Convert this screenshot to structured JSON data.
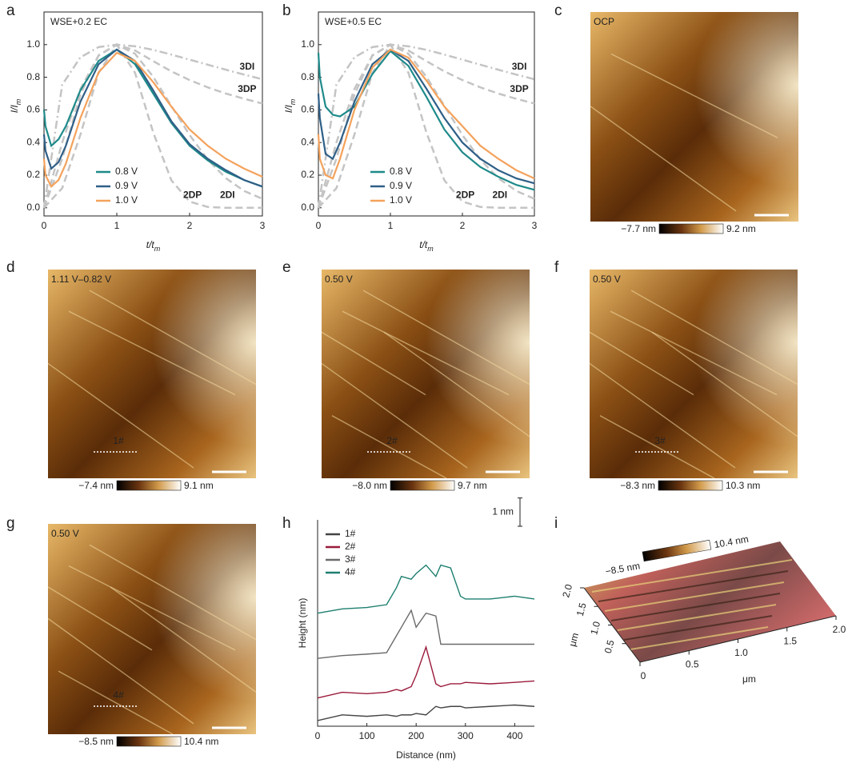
{
  "chart_data": [
    {
      "panel": "a",
      "type": "line",
      "annotation": "WSE+0.2 EC",
      "x_label": {
        "main": "t/t",
        "sub": "m"
      },
      "y_label": {
        "main": "I/I",
        "sub": "m"
      },
      "x": [
        0,
        0.02,
        0.1,
        0.2,
        0.3,
        0.5,
        0.75,
        1,
        1.25,
        1.5,
        1.75,
        2,
        2.25,
        2.5,
        2.75,
        3
      ],
      "series": [
        {
          "name": "0.8 V",
          "color": "#1f8a8a",
          "values": [
            0.6,
            0.5,
            0.38,
            0.42,
            0.5,
            0.72,
            0.9,
            0.97,
            0.88,
            0.7,
            0.52,
            0.38,
            0.29,
            0.22,
            0.17,
            0.13
          ]
        },
        {
          "name": "0.9 V",
          "color": "#2f5f87",
          "values": [
            0.45,
            0.35,
            0.24,
            0.28,
            0.38,
            0.65,
            0.88,
            0.97,
            0.9,
            0.72,
            0.53,
            0.39,
            0.3,
            0.23,
            0.17,
            0.13
          ]
        },
        {
          "name": "1.0 V",
          "color": "#f4a25c",
          "values": [
            0.3,
            0.2,
            0.13,
            0.17,
            0.27,
            0.55,
            0.83,
            0.95,
            0.9,
            0.77,
            0.62,
            0.48,
            0.38,
            0.3,
            0.24,
            0.19
          ]
        }
      ],
      "reference_curves": {
        "color": "#c4c4c4",
        "x": [
          0,
          0.25,
          0.5,
          0.75,
          1,
          1.25,
          1.5,
          1.75,
          2,
          2.25,
          2.5,
          2.75,
          3
        ],
        "curves": [
          {
            "name": "3DI",
            "values": [
              0,
              0.754,
              0.922,
              0.985,
              1.0,
              0.99,
              0.968,
              0.939,
              0.908,
              0.877,
              0.846,
              0.816,
              0.788
            ]
          },
          {
            "name": "3DP",
            "values": [
              0,
              0.301,
              0.693,
              0.935,
              1.0,
              0.964,
              0.899,
              0.836,
              0.783,
              0.738,
              0.7,
              0.668,
              0.639
            ]
          },
          {
            "name": "2DP",
            "values": [
              0,
              0.12,
              0.448,
              0.827,
              1.0,
              0.828,
              0.462,
              0.168,
              0.038,
              0.005,
              0,
              0,
              0
            ]
          },
          {
            "name": "2DI",
            "values": [
              0,
              0.4,
              0.728,
              0.933,
              1.0,
              0.944,
              0.803,
              0.624,
              0.446,
              0.295,
              0.181,
              0.103,
              0.055
            ]
          }
        ]
      },
      "xlim": [
        0,
        3
      ],
      "ylim": [
        -0.05,
        1.2
      ],
      "xticks": [
        0,
        1,
        2,
        3
      ],
      "yticks": [
        {
          "value": 0,
          "label": "0.0"
        },
        {
          "value": 0.2,
          "label": "0.2"
        },
        {
          "value": 0.4,
          "label": "0.4"
        },
        {
          "value": 0.6,
          "label": "0.6"
        },
        {
          "value": 0.8,
          "label": "0.8"
        },
        {
          "value": 1,
          "label": "1.0"
        }
      ],
      "legend_position": "lower-center"
    },
    {
      "panel": "b",
      "type": "line",
      "annotation": "WSE+0.5 EC",
      "x_label": {
        "main": "t/t",
        "sub": "m"
      },
      "y_label": {
        "main": "I/I",
        "sub": "m"
      },
      "x": [
        0,
        0.02,
        0.1,
        0.2,
        0.3,
        0.5,
        0.75,
        1,
        1.25,
        1.5,
        1.75,
        2,
        2.25,
        2.5,
        2.75,
        3
      ],
      "series": [
        {
          "name": "0.8 V",
          "color": "#1f8a8a",
          "values": [
            0.95,
            0.8,
            0.62,
            0.57,
            0.56,
            0.62,
            0.82,
            0.96,
            0.87,
            0.68,
            0.48,
            0.34,
            0.25,
            0.19,
            0.14,
            0.11
          ]
        },
        {
          "name": "0.9 V",
          "color": "#2f5f87",
          "values": [
            0.7,
            0.55,
            0.33,
            0.3,
            0.4,
            0.65,
            0.88,
            0.97,
            0.9,
            0.73,
            0.55,
            0.4,
            0.3,
            0.23,
            0.18,
            0.15
          ]
        },
        {
          "name": "1.0 V",
          "color": "#f4a25c",
          "values": [
            0.45,
            0.3,
            0.2,
            0.18,
            0.3,
            0.6,
            0.86,
            0.97,
            0.92,
            0.78,
            0.62,
            0.5,
            0.38,
            0.3,
            0.23,
            0.18
          ]
        }
      ],
      "reference_curves": {
        "color": "#c4c4c4",
        "x": [
          0,
          0.25,
          0.5,
          0.75,
          1,
          1.25,
          1.5,
          1.75,
          2,
          2.25,
          2.5,
          2.75,
          3
        ],
        "curves": [
          {
            "name": "3DI",
            "values": [
              0,
              0.754,
              0.922,
              0.985,
              1.0,
              0.99,
              0.968,
              0.939,
              0.908,
              0.877,
              0.846,
              0.816,
              0.788
            ]
          },
          {
            "name": "3DP",
            "values": [
              0,
              0.301,
              0.693,
              0.935,
              1.0,
              0.964,
              0.899,
              0.836,
              0.783,
              0.738,
              0.7,
              0.668,
              0.639
            ]
          },
          {
            "name": "2DP",
            "values": [
              0,
              0.12,
              0.448,
              0.827,
              1.0,
              0.828,
              0.462,
              0.168,
              0.038,
              0.005,
              0,
              0,
              0
            ]
          },
          {
            "name": "2DI",
            "values": [
              0,
              0.4,
              0.728,
              0.933,
              1.0,
              0.944,
              0.803,
              0.624,
              0.446,
              0.295,
              0.181,
              0.103,
              0.055
            ]
          }
        ]
      },
      "xlim": [
        0,
        3
      ],
      "ylim": [
        -0.05,
        1.2
      ],
      "xticks": [
        0,
        1,
        2,
        3
      ],
      "yticks": [
        {
          "value": 0,
          "label": "0.0"
        },
        {
          "value": 0.2,
          "label": "0.2"
        },
        {
          "value": 0.4,
          "label": "0.4"
        },
        {
          "value": 0.6,
          "label": "0.6"
        },
        {
          "value": 0.8,
          "label": "0.8"
        },
        {
          "value": 1,
          "label": "1.0"
        }
      ],
      "legend_position": "lower-center"
    },
    {
      "panel": "h",
      "type": "line",
      "x_label": "Distance (nm)",
      "y_label": "Height (nm)",
      "x": [
        0,
        50,
        100,
        140,
        160,
        170,
        190,
        200,
        220,
        240,
        250,
        270,
        290,
        300,
        350,
        400,
        440
      ],
      "series": [
        {
          "name": "1#",
          "color": "#444444",
          "values": [
            0.2,
            0.4,
            0.35,
            0.4,
            0.35,
            0.4,
            0.4,
            0.45,
            0.4,
            0.7,
            0.65,
            0.7,
            0.7,
            0.65,
            0.7,
            0.75,
            0.7
          ]
        },
        {
          "name": "2#",
          "color": "#9b1b3c",
          "values": [
            1.0,
            1.2,
            1.15,
            1.2,
            1.3,
            1.25,
            1.4,
            1.8,
            2.8,
            1.5,
            1.4,
            1.5,
            1.5,
            1.55,
            1.5,
            1.55,
            1.6
          ]
        },
        {
          "name": "3#",
          "color": "#6a6a6a",
          "values": [
            2.4,
            2.5,
            2.55,
            2.6,
            3.2,
            3.5,
            4.1,
            3.5,
            4.0,
            3.9,
            2.9,
            2.9,
            2.9,
            2.9,
            2.9,
            2.9,
            2.9
          ]
        },
        {
          "name": "4#",
          "color": "#1e7f70",
          "values": [
            4.0,
            4.15,
            4.2,
            4.3,
            4.9,
            5.3,
            5.2,
            5.4,
            5.7,
            5.3,
            5.7,
            5.6,
            4.6,
            4.5,
            4.5,
            4.6,
            4.5
          ]
        }
      ],
      "scale_bar": {
        "value": 1,
        "label": "1 nm"
      },
      "xlim": [
        0,
        440
      ],
      "ylim": [
        0,
        7.3
      ],
      "xticks": [
        0,
        100,
        200,
        300,
        400
      ],
      "legend_position": "upper-left"
    }
  ],
  "images": [
    {
      "panel": "c",
      "label": "OCP",
      "colorbar": [
        {
          "value": -7.7,
          "label": "−7.7 nm"
        },
        {
          "value": 9.2,
          "label": "9.2 nm"
        }
      ]
    },
    {
      "panel": "d",
      "label": "1.11 V–0.82 V",
      "profile": "1#",
      "colorbar": [
        {
          "value": -7.4,
          "label": "−7.4 nm"
        },
        {
          "value": 9.1,
          "label": "9.1 nm"
        }
      ]
    },
    {
      "panel": "e",
      "label": "0.50 V",
      "profile": "2#",
      "colorbar": [
        {
          "value": -8.0,
          "label": "−8.0 nm"
        },
        {
          "value": 9.7,
          "label": "9.7 nm"
        }
      ]
    },
    {
      "panel": "f",
      "label": "0.50 V",
      "profile": "3#",
      "colorbar": [
        {
          "value": -8.3,
          "label": "−8.3 nm"
        },
        {
          "value": 10.3,
          "label": "10.3 nm"
        }
      ]
    },
    {
      "panel": "g",
      "label": "0.50 V",
      "profile": "4#",
      "colorbar": [
        {
          "value": -8.5,
          "label": "−8.5 nm"
        },
        {
          "value": 10.4,
          "label": "10.4 nm"
        }
      ]
    }
  ],
  "surface_3d": {
    "panel": "i",
    "colorbar": [
      {
        "value": -8.5,
        "label": "−8.5 nm"
      },
      {
        "value": 10.4,
        "label": "10.4 nm"
      }
    ],
    "x_ticks": [
      0,
      0.5,
      {
        "value": 1,
        "label": "1.0"
      },
      1.5,
      {
        "value": 2,
        "label": "2.0"
      }
    ],
    "y_ticks": [
      0.5,
      {
        "value": 1,
        "label": "1.0"
      },
      1.5,
      {
        "value": 2,
        "label": "2.0"
      }
    ],
    "x_unit": "μm",
    "y_unit": "μm"
  }
}
